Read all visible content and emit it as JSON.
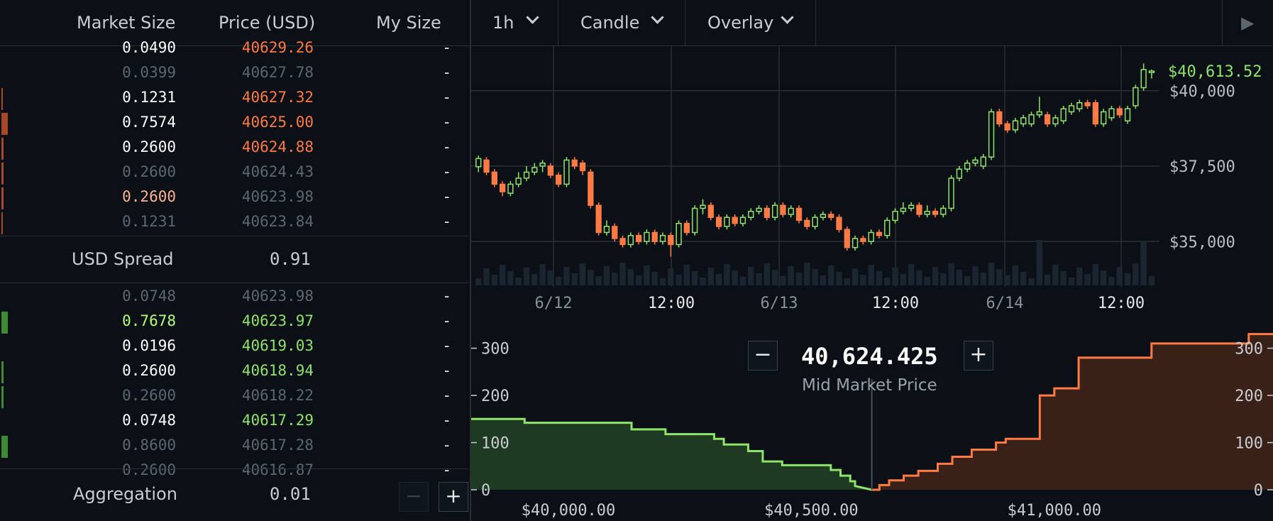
{
  "orderbook": {
    "headers": {
      "market_size": "Market Size",
      "price": "Price (USD)",
      "my_size": "My Size"
    },
    "asks": [
      {
        "size": "0.0490",
        "price": "40629.26",
        "my": "-",
        "size_color": "#ffffff",
        "price_color": "#ff7a45",
        "bar": 0
      },
      {
        "size": "0.0399",
        "price": "40627.78",
        "my": "-",
        "size_color": "#5d6670",
        "price_color": "#5d6670",
        "bar": 0
      },
      {
        "size": "0.1231",
        "price": "40627.32",
        "my": "-",
        "size_color": "#ffffff",
        "price_color": "#ff7a45",
        "bar": 2
      },
      {
        "size": "0.7574",
        "price": "40625.00",
        "my": "-",
        "size_color": "#ffffff",
        "price_color": "#ff7a45",
        "bar": 9
      },
      {
        "size": "0.2600",
        "price": "40624.88",
        "my": "-",
        "size_color": "#ffffff",
        "price_color": "#ff7a45",
        "bar": 3
      },
      {
        "size": "0.2600",
        "price": "40624.43",
        "my": "-",
        "size_color": "#5d6670",
        "price_color": "#5d6670",
        "bar": 3
      },
      {
        "size": "0.2600",
        "price": "40623.98",
        "my": "-",
        "size_color": "#ffb394",
        "price_color": "#5d6670",
        "bar": 3
      },
      {
        "size": "0.1231",
        "price": "40623.84",
        "my": "-",
        "size_color": "#5d6670",
        "price_color": "#5d6670",
        "bar": 2
      }
    ],
    "spread": {
      "label": "USD Spread",
      "value": "0.91"
    },
    "bids": [
      {
        "size": "0.0748",
        "price": "40623.98",
        "my": "-",
        "size_color": "#5d6670",
        "price_color": "#5d6670",
        "bar": 0
      },
      {
        "size": "0.7678",
        "price": "40623.97",
        "my": "-",
        "size_color": "#b6ff7a",
        "price_color": "#8fe36b",
        "bar": 9
      },
      {
        "size": "0.0196",
        "price": "40619.03",
        "my": "-",
        "size_color": "#ffffff",
        "price_color": "#8fe36b",
        "bar": 0
      },
      {
        "size": "0.2600",
        "price": "40618.94",
        "my": "-",
        "size_color": "#ffffff",
        "price_color": "#8fe36b",
        "bar": 3
      },
      {
        "size": "0.2600",
        "price": "40618.22",
        "my": "-",
        "size_color": "#5d6670",
        "price_color": "#5d6670",
        "bar": 3
      },
      {
        "size": "0.0748",
        "price": "40617.29",
        "my": "-",
        "size_color": "#ffffff",
        "price_color": "#8fe36b",
        "bar": 0
      },
      {
        "size": "0.8600",
        "price": "40617.28",
        "my": "-",
        "size_color": "#5d6670",
        "price_color": "#5d6670",
        "bar": 9
      },
      {
        "size": "0.2600",
        "price": "40616.87",
        "my": "-",
        "size_color": "#5d6670",
        "price_color": "#5d6670",
        "bar": 0
      }
    ],
    "aggregation": {
      "label": "Aggregation",
      "value": "0.01",
      "minus": "−",
      "plus": "+"
    }
  },
  "toolbar": {
    "interval": "1h",
    "chart_type": "Candle",
    "overlay": "Overlay",
    "play": "▶"
  },
  "price_chart": {
    "current_price": "$40,613.52",
    "y_labels": [
      "$40,000",
      "$37,500",
      "$35,000"
    ],
    "x_labels": [
      "6/12",
      "12:00",
      "6/13",
      "12:00",
      "6/14",
      "12:00"
    ]
  },
  "depth": {
    "mid_price": "40,624.425",
    "mid_label": "Mid Market Price",
    "minus": "−",
    "plus": "+",
    "y_labels": [
      "300",
      "200",
      "100",
      "0"
    ],
    "x_labels": [
      "$40,000.00",
      "$40,500.00",
      "$41,000.00"
    ]
  },
  "colors": {
    "bid": "#8fe36b",
    "ask": "#ff7a45",
    "bg": "#0b1016",
    "grid": "#2a2f36"
  },
  "chart_data": [
    {
      "type": "candlestick",
      "ylim": [
        33500,
        41500
      ],
      "candles": [
        {
          "o": 37480,
          "c": 37750,
          "h": 37850,
          "l": 37300
        },
        {
          "o": 37700,
          "c": 37300,
          "h": 37800,
          "l": 37200
        },
        {
          "o": 37300,
          "c": 36900,
          "h": 37400,
          "l": 36800
        },
        {
          "o": 36900,
          "c": 36650,
          "h": 37000,
          "l": 36500
        },
        {
          "o": 36600,
          "c": 36900,
          "h": 37000,
          "l": 36500
        },
        {
          "o": 36900,
          "c": 37100,
          "h": 37300,
          "l": 36800
        },
        {
          "o": 37100,
          "c": 37300,
          "h": 37500,
          "l": 37000
        },
        {
          "o": 37300,
          "c": 37450,
          "h": 37600,
          "l": 37200
        },
        {
          "o": 37500,
          "c": 37600,
          "h": 37700,
          "l": 37300
        },
        {
          "o": 37500,
          "c": 37200,
          "h": 37600,
          "l": 37100
        },
        {
          "o": 37200,
          "c": 36900,
          "h": 37300,
          "l": 36800
        },
        {
          "o": 36900,
          "c": 37700,
          "h": 37800,
          "l": 36800
        },
        {
          "o": 37700,
          "c": 37500,
          "h": 37800,
          "l": 37400
        },
        {
          "o": 37600,
          "c": 37350,
          "h": 37700,
          "l": 37200
        },
        {
          "o": 37300,
          "c": 36200,
          "h": 37400,
          "l": 36100
        },
        {
          "o": 36200,
          "c": 35300,
          "h": 36300,
          "l": 35200
        },
        {
          "o": 35300,
          "c": 35500,
          "h": 35700,
          "l": 35200
        },
        {
          "o": 35500,
          "c": 35100,
          "h": 35600,
          "l": 35000
        },
        {
          "o": 35100,
          "c": 34900,
          "h": 35200,
          "l": 34800
        },
        {
          "o": 34900,
          "c": 35200,
          "h": 35300,
          "l": 34800
        },
        {
          "o": 35200,
          "c": 35000,
          "h": 35300,
          "l": 34900
        },
        {
          "o": 35000,
          "c": 35300,
          "h": 35400,
          "l": 34900
        },
        {
          "o": 35300,
          "c": 35000,
          "h": 35400,
          "l": 34900
        },
        {
          "o": 35000,
          "c": 35200,
          "h": 35300,
          "l": 34900
        },
        {
          "o": 35200,
          "c": 34900,
          "h": 35300,
          "l": 34500
        },
        {
          "o": 34900,
          "c": 35600,
          "h": 35700,
          "l": 34800
        },
        {
          "o": 35600,
          "c": 35300,
          "h": 35700,
          "l": 35200
        },
        {
          "o": 35300,
          "c": 36100,
          "h": 36200,
          "l": 35200
        },
        {
          "o": 36100,
          "c": 36200,
          "h": 36400,
          "l": 35900
        },
        {
          "o": 36200,
          "c": 35800,
          "h": 36300,
          "l": 35700
        },
        {
          "o": 35800,
          "c": 35500,
          "h": 35900,
          "l": 35400
        },
        {
          "o": 35500,
          "c": 35800,
          "h": 35900,
          "l": 35400
        },
        {
          "o": 35800,
          "c": 35600,
          "h": 35900,
          "l": 35500
        },
        {
          "o": 35600,
          "c": 35800,
          "h": 35900,
          "l": 35500
        },
        {
          "o": 35800,
          "c": 36000,
          "h": 36100,
          "l": 35700
        },
        {
          "o": 36000,
          "c": 36100,
          "h": 36200,
          "l": 35900
        },
        {
          "o": 36100,
          "c": 35800,
          "h": 36200,
          "l": 35700
        },
        {
          "o": 35800,
          "c": 36200,
          "h": 36300,
          "l": 35700
        },
        {
          "o": 36200,
          "c": 35900,
          "h": 36300,
          "l": 35800
        },
        {
          "o": 35900,
          "c": 36100,
          "h": 36200,
          "l": 35800
        },
        {
          "o": 36100,
          "c": 35700,
          "h": 36200,
          "l": 35600
        },
        {
          "o": 35700,
          "c": 35500,
          "h": 35800,
          "l": 35400
        },
        {
          "o": 35500,
          "c": 35800,
          "h": 35900,
          "l": 35400
        },
        {
          "o": 35800,
          "c": 35900,
          "h": 36000,
          "l": 35700
        },
        {
          "o": 35900,
          "c": 35800,
          "h": 36000,
          "l": 35700
        },
        {
          "o": 35800,
          "c": 35400,
          "h": 35900,
          "l": 35300
        },
        {
          "o": 35400,
          "c": 34800,
          "h": 35500,
          "l": 34700
        },
        {
          "o": 34800,
          "c": 35100,
          "h": 35200,
          "l": 34700
        },
        {
          "o": 35100,
          "c": 35000,
          "h": 35200,
          "l": 34900
        },
        {
          "o": 35000,
          "c": 35300,
          "h": 35400,
          "l": 34900
        },
        {
          "o": 35300,
          "c": 35200,
          "h": 35400,
          "l": 35100
        },
        {
          "o": 35200,
          "c": 35700,
          "h": 35800,
          "l": 35100
        },
        {
          "o": 35700,
          "c": 36000,
          "h": 36100,
          "l": 35600
        },
        {
          "o": 36000,
          "c": 36100,
          "h": 36300,
          "l": 35900
        },
        {
          "o": 36100,
          "c": 36200,
          "h": 36300,
          "l": 36000
        },
        {
          "o": 36200,
          "c": 35900,
          "h": 36300,
          "l": 35800
        },
        {
          "o": 35900,
          "c": 36000,
          "h": 36200,
          "l": 35800
        },
        {
          "o": 36000,
          "c": 35900,
          "h": 36100,
          "l": 35800
        },
        {
          "o": 35900,
          "c": 36100,
          "h": 36200,
          "l": 35800
        },
        {
          "o": 36100,
          "c": 37100,
          "h": 37200,
          "l": 36000
        },
        {
          "o": 37100,
          "c": 37400,
          "h": 37500,
          "l": 37000
        },
        {
          "o": 37400,
          "c": 37600,
          "h": 37700,
          "l": 37300
        },
        {
          "o": 37600,
          "c": 37700,
          "h": 37800,
          "l": 37500
        },
        {
          "o": 37500,
          "c": 37800,
          "h": 37900,
          "l": 37400
        },
        {
          "o": 37800,
          "c": 39300,
          "h": 39400,
          "l": 37700
        },
        {
          "o": 39300,
          "c": 38900,
          "h": 39400,
          "l": 38800
        },
        {
          "o": 38900,
          "c": 38700,
          "h": 39000,
          "l": 38600
        },
        {
          "o": 38700,
          "c": 39000,
          "h": 39100,
          "l": 38600
        },
        {
          "o": 38900,
          "c": 39100,
          "h": 39200,
          "l": 38800
        },
        {
          "o": 38900,
          "c": 39200,
          "h": 39300,
          "l": 38800
        },
        {
          "o": 39200,
          "c": 39300,
          "h": 39800,
          "l": 39100
        },
        {
          "o": 39200,
          "c": 38900,
          "h": 39300,
          "l": 38800
        },
        {
          "o": 38900,
          "c": 39100,
          "h": 39200,
          "l": 38800
        },
        {
          "o": 39000,
          "c": 39400,
          "h": 39500,
          "l": 38900
        },
        {
          "o": 39300,
          "c": 39500,
          "h": 39600,
          "l": 39200
        },
        {
          "o": 39400,
          "c": 39600,
          "h": 39700,
          "l": 39300
        },
        {
          "o": 39600,
          "c": 39500,
          "h": 39700,
          "l": 39400
        },
        {
          "o": 39600,
          "c": 38900,
          "h": 39700,
          "l": 38800
        },
        {
          "o": 38900,
          "c": 39300,
          "h": 39400,
          "l": 38800
        },
        {
          "o": 39100,
          "c": 39400,
          "h": 39500,
          "l": 39000
        },
        {
          "o": 39400,
          "c": 39200,
          "h": 39500,
          "l": 39100
        },
        {
          "o": 39000,
          "c": 39400,
          "h": 39500,
          "l": 38900
        },
        {
          "o": 39500,
          "c": 40100,
          "h": 40200,
          "l": 39400
        },
        {
          "o": 40100,
          "c": 40700,
          "h": 40900,
          "l": 40000
        },
        {
          "o": 40600,
          "c": 40650,
          "h": 40700,
          "l": 40400
        }
      ]
    },
    {
      "type": "area",
      "title": "",
      "xlabel": "",
      "ylabel": "",
      "xlim": [
        39800,
        41450
      ],
      "ylim": [
        0,
        340
      ],
      "series": [
        {
          "x": [
            39800,
            39910,
            39910,
            40130,
            40130,
            40200,
            40200,
            40300,
            40300,
            40320,
            40320,
            40370,
            40370,
            40400,
            40400,
            40440,
            40440,
            40540,
            40540,
            40560,
            40560,
            40580,
            40580,
            40590,
            40590,
            40624.425
          ],
          "y": [
            150,
            150,
            142,
            142,
            128,
            128,
            118,
            118,
            108,
            108,
            96,
            96,
            82,
            82,
            60,
            60,
            52,
            52,
            42,
            42,
            30,
            30,
            18,
            18,
            8,
            0
          ]
        },
        {
          "x": [
            40624.425,
            40640,
            40640,
            40660,
            40660,
            40690,
            40690,
            40720,
            40720,
            40760,
            40760,
            40790,
            40790,
            40830,
            40830,
            40880,
            40880,
            40900,
            40900,
            40970,
            40970,
            41000,
            41000,
            41050,
            41050,
            41200,
            41200,
            41400,
            41400,
            41450
          ],
          "y": [
            0,
            0,
            10,
            10,
            20,
            20,
            30,
            30,
            40,
            40,
            55,
            55,
            70,
            70,
            85,
            85,
            100,
            100,
            108,
            108,
            200,
            200,
            215,
            215,
            280,
            280,
            310,
            310,
            330,
            330
          ]
        }
      ]
    }
  ]
}
